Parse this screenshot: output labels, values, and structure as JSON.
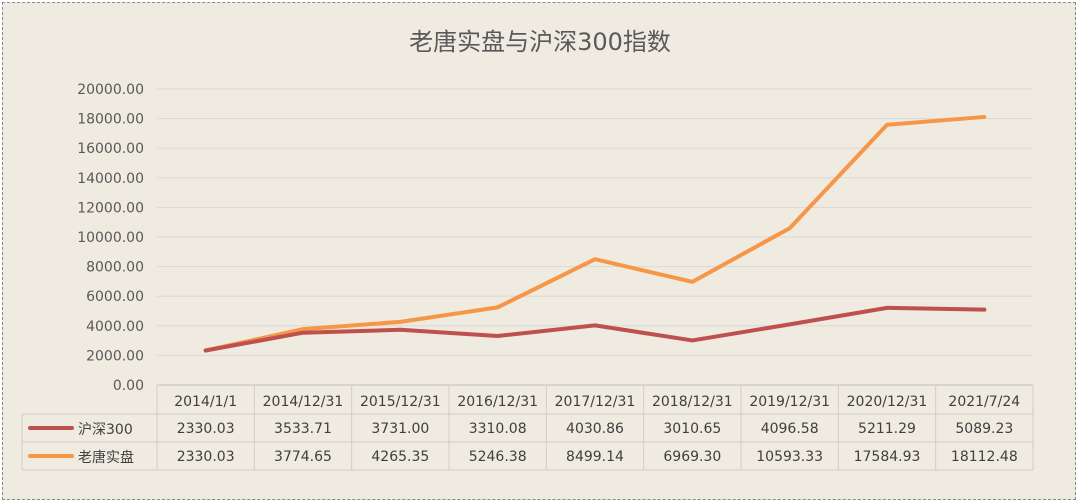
{
  "chart_data": {
    "type": "line",
    "title": "老唐实盘与沪深300指数",
    "categories": [
      "2014/1/1",
      "2014/12/31",
      "2015/12/31",
      "2016/12/31",
      "2017/12/31",
      "2018/12/31",
      "2019/12/31",
      "2020/12/31",
      "2021/7/24"
    ],
    "series": [
      {
        "name": "沪深300",
        "color": "#c0504d",
        "values": [
          2330.03,
          3533.71,
          3731.0,
          3310.08,
          4030.86,
          3010.65,
          4096.58,
          5211.29,
          5089.23
        ],
        "labels": [
          "2330.03",
          "3533.71",
          "3731.00",
          "3310.08",
          "4030.86",
          "3010.65",
          "4096.58",
          "5211.29",
          "5089.23"
        ]
      },
      {
        "name": "老唐实盘",
        "color": "#f79646",
        "values": [
          2330.03,
          3774.65,
          4265.35,
          5246.38,
          8499.14,
          6969.3,
          10593.33,
          17584.93,
          18112.48
        ],
        "labels": [
          "2330.03",
          "3774.65",
          "4265.35",
          "5246.38",
          "8499.14",
          "6969.30",
          "10593.33",
          "17584.93",
          "18112.48"
        ]
      }
    ],
    "ylim": [
      0,
      20000
    ],
    "yticks": [
      "0.00",
      "2000.00",
      "4000.00",
      "6000.00",
      "8000.00",
      "10000.00",
      "12000.00",
      "14000.00",
      "16000.00",
      "18000.00",
      "20000.00"
    ],
    "xlabel": "",
    "ylabel": "",
    "grid": true,
    "legend": "data-table"
  }
}
